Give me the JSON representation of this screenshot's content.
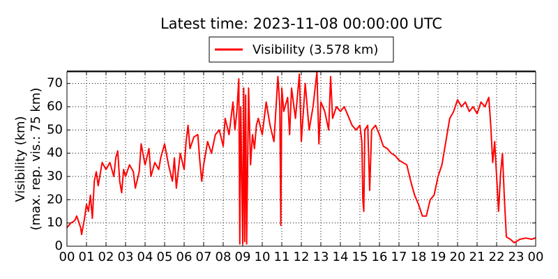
{
  "chart_data": {
    "type": "line",
    "title": "Latest time: 2023-11-08 00:00:00 UTC",
    "ylabel": [
      "Visibility (km)",
      "(max. rep. vis.: 75 km)"
    ],
    "grid": true,
    "xlim": [
      0,
      24
    ],
    "xticks": [
      {
        "value": 0,
        "label": "00"
      },
      {
        "value": 1,
        "label": "01"
      },
      {
        "value": 2,
        "label": "02"
      },
      {
        "value": 3,
        "label": "03"
      },
      {
        "value": 4,
        "label": "04"
      },
      {
        "value": 5,
        "label": "05"
      },
      {
        "value": 6,
        "label": "06"
      },
      {
        "value": 7,
        "label": "07"
      },
      {
        "value": 8,
        "label": "08"
      },
      {
        "value": 9,
        "label": "09"
      },
      {
        "value": 10,
        "label": "10"
      },
      {
        "value": 11,
        "label": "11"
      },
      {
        "value": 12,
        "label": "12"
      },
      {
        "value": 13,
        "label": "13"
      },
      {
        "value": 14,
        "label": "14"
      },
      {
        "value": 15,
        "label": "15"
      },
      {
        "value": 16,
        "label": "16"
      },
      {
        "value": 17,
        "label": "17"
      },
      {
        "value": 18,
        "label": "18"
      },
      {
        "value": 19,
        "label": "19"
      },
      {
        "value": 20,
        "label": "20"
      },
      {
        "value": 21,
        "label": "21"
      },
      {
        "value": 22,
        "label": "22"
      },
      {
        "value": 23,
        "label": "23"
      },
      {
        "value": 24,
        "label": "00"
      }
    ],
    "ylim": [
      0,
      75
    ],
    "yticks": [
      0,
      10,
      20,
      30,
      40,
      50,
      60,
      70
    ],
    "x": [
      0,
      0.2,
      0.4,
      0.5,
      0.7,
      0.75,
      0.9,
      1.0,
      1.1,
      1.2,
      1.3,
      1.4,
      1.5,
      1.6,
      1.8,
      2.0,
      2.2,
      2.4,
      2.5,
      2.6,
      2.7,
      2.8,
      2.9,
      3.0,
      3.2,
      3.4,
      3.5,
      3.7,
      3.8,
      4.0,
      4.2,
      4.3,
      4.5,
      4.7,
      4.8,
      5.0,
      5.2,
      5.4,
      5.5,
      5.6,
      5.8,
      6.0,
      6.1,
      6.2,
      6.3,
      6.5,
      6.7,
      6.8,
      6.9,
      7.0,
      7.2,
      7.4,
      7.6,
      7.8,
      8.0,
      8.1,
      8.3,
      8.5,
      8.6,
      8.7,
      8.8,
      8.85,
      8.9,
      9.0,
      9.05,
      9.1,
      9.15,
      9.2,
      9.3,
      9.4,
      9.5,
      9.6,
      9.7,
      9.8,
      10.0,
      10.2,
      10.4,
      10.6,
      10.8,
      10.9,
      10.95,
      11.0,
      11.1,
      11.3,
      11.4,
      11.5,
      11.7,
      11.9,
      12.0,
      12.2,
      12.4,
      12.6,
      12.8,
      12.9,
      13.0,
      13.2,
      13.4,
      13.5,
      13.6,
      13.8,
      14.0,
      14.2,
      14.4,
      14.6,
      14.8,
      15.0,
      15.1,
      15.15,
      15.2,
      15.25,
      15.4,
      15.5,
      15.6,
      15.8,
      16.0,
      16.2,
      16.4,
      16.6,
      16.8,
      17.0,
      17.2,
      17.4,
      17.6,
      17.8,
      18.0,
      18.2,
      18.4,
      18.6,
      18.8,
      19.0,
      19.2,
      19.4,
      19.6,
      19.8,
      20.0,
      20.2,
      20.4,
      20.6,
      20.8,
      21.0,
      21.2,
      21.4,
      21.6,
      21.7,
      21.8,
      21.9,
      22.0,
      22.1,
      22.2,
      22.3,
      22.4,
      22.5,
      22.7,
      22.9,
      23.2,
      23.5,
      23.8,
      24.0
    ],
    "series": [
      {
        "name": "Visibility (3.578 km)",
        "color": "#ff0000",
        "values": [
          8,
          10,
          11,
          13,
          8,
          5,
          12,
          18,
          15,
          22,
          12,
          28,
          32,
          26,
          36,
          33,
          36,
          30,
          38,
          41,
          28,
          23,
          33,
          30,
          35,
          32,
          25,
          32,
          44,
          35,
          42,
          30,
          36,
          33,
          38,
          44,
          35,
          28,
          38,
          25,
          40,
          33,
          45,
          52,
          42,
          47,
          48,
          37,
          28,
          35,
          45,
          40,
          48,
          50,
          43,
          55,
          48,
          62,
          50,
          58,
          72,
          1,
          60,
          1,
          68,
          2,
          65,
          1,
          68,
          35,
          48,
          42,
          52,
          55,
          48,
          62,
          52,
          45,
          73,
          60,
          9,
          68,
          58,
          64,
          48,
          68,
          55,
          74,
          45,
          70,
          50,
          60,
          75,
          44,
          62,
          58,
          50,
          73,
          55,
          60,
          58,
          60,
          56,
          52,
          50,
          52,
          45,
          20,
          15,
          50,
          52,
          24,
          50,
          52,
          48,
          43,
          42,
          40,
          39,
          37,
          36,
          35,
          28,
          22,
          18,
          13,
          13,
          20,
          22,
          30,
          35,
          45,
          55,
          58,
          63,
          60,
          62,
          58,
          60,
          57,
          62,
          60,
          64,
          52,
          36,
          45,
          30,
          15,
          31,
          40,
          20,
          4,
          3,
          1.5,
          3,
          3.5,
          3,
          3.6
        ]
      }
    ]
  }
}
